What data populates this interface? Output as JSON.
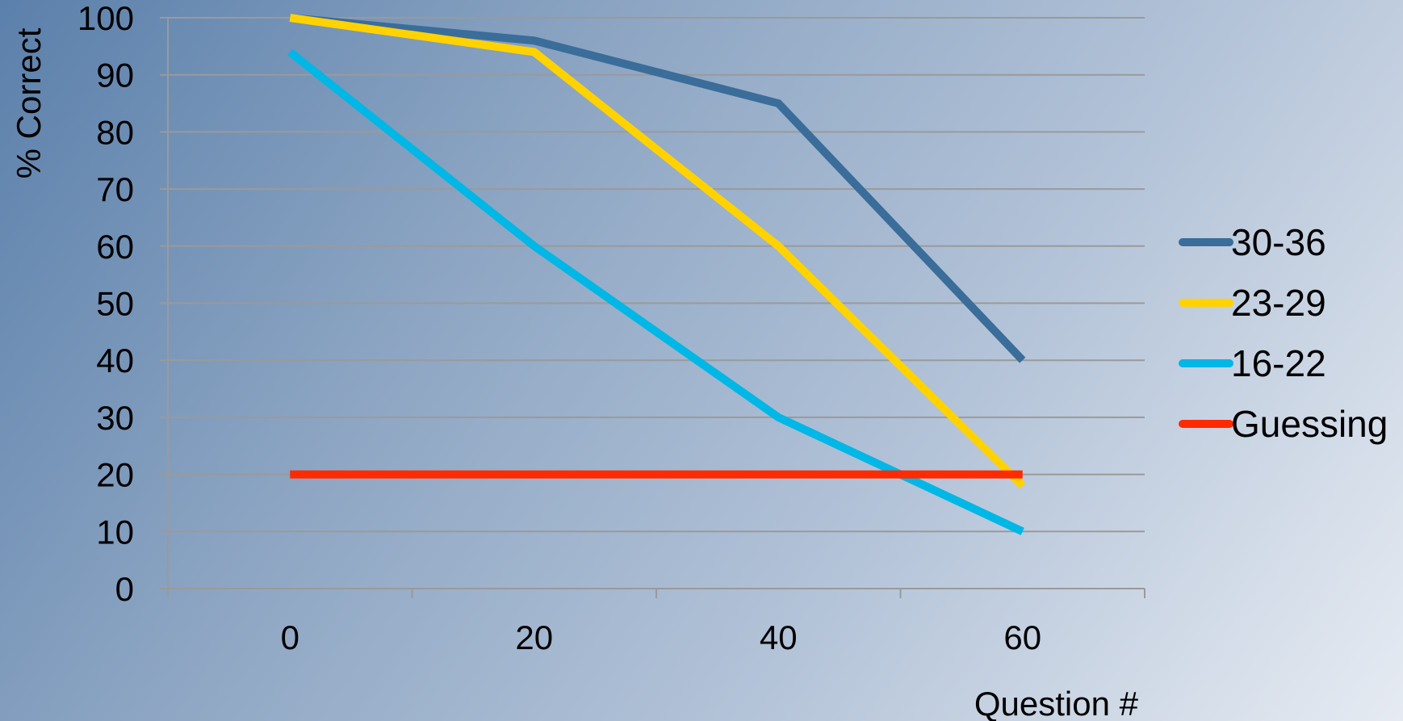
{
  "chart_data": {
    "type": "line",
    "title": "",
    "xlabel": "Question #",
    "ylabel": "% Correct",
    "x": [
      0,
      20,
      40,
      60
    ],
    "xlim": [
      -10,
      70
    ],
    "ylim": [
      0,
      100
    ],
    "xticks": [
      0,
      20,
      40,
      60
    ],
    "yticks": [
      0,
      10,
      20,
      30,
      40,
      50,
      60,
      70,
      80,
      90,
      100
    ],
    "grid": "horizontal",
    "legend_position": "right",
    "series": [
      {
        "name": "30-36",
        "values": [
          100,
          96,
          85,
          40
        ],
        "color": "#3a6d99"
      },
      {
        "name": "23-29",
        "values": [
          100,
          94,
          60,
          18
        ],
        "color": "#ffd200"
      },
      {
        "name": "16-22",
        "values": [
          94,
          60,
          30,
          10
        ],
        "color": "#00b7e6"
      },
      {
        "name": "Guessing",
        "values": [
          20,
          20,
          20,
          20
        ],
        "color": "#ff2a00"
      }
    ]
  }
}
